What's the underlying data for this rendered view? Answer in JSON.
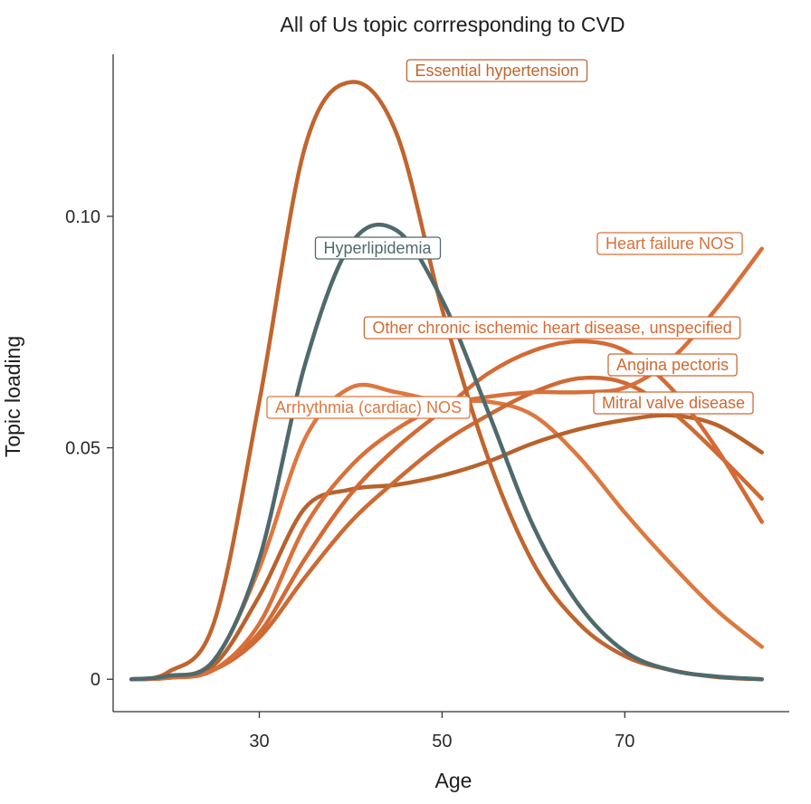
{
  "chart_data": {
    "type": "line",
    "title": "All of Us topic corrresponding to CVD",
    "xlabel": "Age",
    "ylabel": "Topic loading",
    "xlim": [
      14,
      88
    ],
    "ylim": [
      -0.007,
      0.135
    ],
    "xticks": [
      30,
      50,
      70
    ],
    "xtick_labels": [
      "30",
      "50",
      "70"
    ],
    "yticks": [
      0,
      0.05,
      0.1
    ],
    "ytick_labels": [
      "0",
      "0.05",
      "0.10"
    ],
    "grid": false,
    "legend": "none",
    "colors": {
      "orange": "#d8703a",
      "rust": "#b8622c",
      "teal": "#4f6a6c"
    },
    "x": [
      16,
      20,
      25,
      30,
      35,
      40,
      45,
      50,
      55,
      60,
      65,
      70,
      75,
      80,
      85
    ],
    "series": [
      {
        "name": "Essential hypertension",
        "color": "#c1652e",
        "values": [
          0.0,
          0.0015,
          0.012,
          0.06,
          0.115,
          0.129,
          0.118,
          0.08,
          0.048,
          0.025,
          0.012,
          0.005,
          0.002,
          0.0005,
          0.0
        ]
      },
      {
        "name": "Hyperlipidemia",
        "color": "#4f6a6c",
        "values": [
          0.0,
          0.0007,
          0.004,
          0.026,
          0.068,
          0.094,
          0.097,
          0.082,
          0.058,
          0.033,
          0.016,
          0.006,
          0.002,
          0.0006,
          0.0
        ]
      },
      {
        "name": "Heart failure NOS",
        "color": "#d8703a",
        "values": [
          0.0,
          0.0003,
          0.002,
          0.012,
          0.033,
          0.046,
          0.054,
          0.059,
          0.061,
          0.062,
          0.062,
          0.063,
          0.069,
          0.08,
          0.093
        ]
      },
      {
        "name": "Other chronic ischemic heart disease, unspecified",
        "color": "#d46a34",
        "values": [
          0.0,
          0.0003,
          0.002,
          0.01,
          0.026,
          0.04,
          0.05,
          0.058,
          0.066,
          0.071,
          0.073,
          0.071,
          0.063,
          0.05,
          0.034
        ]
      },
      {
        "name": "Angina pectoris",
        "color": "#cd6a33",
        "values": [
          0.0,
          0.0003,
          0.002,
          0.009,
          0.022,
          0.034,
          0.043,
          0.051,
          0.057,
          0.062,
          0.065,
          0.064,
          0.058,
          0.049,
          0.039
        ]
      },
      {
        "name": "Mitral valve disease",
        "color": "#b8622c",
        "values": [
          0.0,
          0.0005,
          0.003,
          0.018,
          0.037,
          0.041,
          0.042,
          0.044,
          0.047,
          0.051,
          0.054,
          0.056,
          0.057,
          0.055,
          0.049
        ]
      },
      {
        "name": "Arrhythmia (cardiac) NOS",
        "color": "#dc7840",
        "values": [
          0.0,
          0.0005,
          0.004,
          0.024,
          0.052,
          0.063,
          0.062,
          0.06,
          0.06,
          0.057,
          0.048,
          0.036,
          0.025,
          0.015,
          0.007
        ]
      }
    ],
    "annotations": [
      {
        "text": "Essential hypertension",
        "color": "#c1652e"
      },
      {
        "text": "Hyperlipidemia",
        "color": "#4f6a6c"
      },
      {
        "text": "Heart failure NOS",
        "color": "#d8703a"
      },
      {
        "text": "Other chronic ischemic heart disease, unspecified",
        "color": "#d46a34"
      },
      {
        "text": "Angina pectoris",
        "color": "#cd6a33"
      },
      {
        "text": "Arrhythmia (cardiac) NOS",
        "color": "#dc7840"
      },
      {
        "text": "Mitral valve disease",
        "color": "#cd6a33"
      }
    ]
  }
}
